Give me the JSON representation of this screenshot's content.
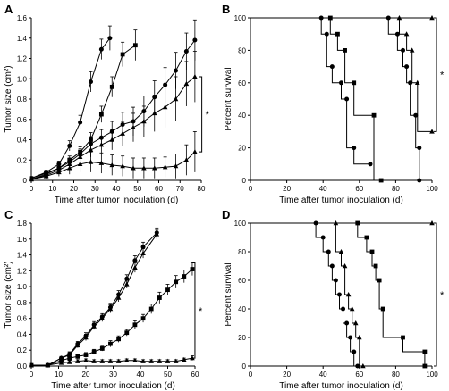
{
  "figure": {
    "star": "*"
  },
  "chart_data": [
    {
      "id": "A",
      "panel": "A",
      "type": "line",
      "xlabel": "Time after tumor inoculation (d)",
      "ylabel": "Tumor size (cm²)",
      "xlim": [
        0,
        80
      ],
      "ylim": [
        0,
        1.6
      ],
      "xticks": [
        0,
        10,
        20,
        30,
        40,
        50,
        60,
        70,
        80
      ],
      "yticks": [
        0,
        0.2,
        0.4,
        0.6,
        0.8,
        1.0,
        1.2,
        1.4,
        1.6
      ],
      "ytick_labels": [
        "0",
        "0.2",
        "0.4",
        "0.6",
        "0.8",
        "1.0",
        "1.2",
        "1.4",
        "1.6"
      ],
      "annotation": "*",
      "bracket": {
        "x": 79,
        "y_top": 1.02,
        "y_bottom": 0.28
      },
      "series": [
        {
          "marker": "circle",
          "x": [
            0,
            7,
            13,
            18,
            23,
            28,
            33,
            37
          ],
          "y": [
            0.02,
            0.08,
            0.16,
            0.34,
            0.57,
            0.97,
            1.29,
            1.4
          ],
          "err": [
            0.01,
            0.02,
            0.03,
            0.05,
            0.07,
            0.1,
            0.1,
            0.12
          ]
        },
        {
          "marker": "square",
          "x": [
            0,
            7,
            13,
            18,
            23,
            28,
            33,
            38,
            43,
            49
          ],
          "y": [
            0.02,
            0.07,
            0.12,
            0.2,
            0.28,
            0.4,
            0.65,
            0.92,
            1.24,
            1.33
          ],
          "err": [
            0.01,
            0.02,
            0.03,
            0.04,
            0.05,
            0.07,
            0.08,
            0.1,
            0.12,
            0.15
          ]
        },
        {
          "marker": "circle",
          "x": [
            0,
            7,
            13,
            18,
            23,
            28,
            33,
            38,
            43,
            48,
            53,
            58,
            63,
            68,
            73,
            77
          ],
          "y": [
            0.01,
            0.06,
            0.12,
            0.18,
            0.26,
            0.36,
            0.42,
            0.48,
            0.55,
            0.58,
            0.68,
            0.82,
            0.94,
            1.08,
            1.27,
            1.38
          ],
          "err": [
            0.01,
            0.02,
            0.03,
            0.04,
            0.05,
            0.07,
            0.08,
            0.1,
            0.12,
            0.14,
            0.15,
            0.16,
            0.17,
            0.18,
            0.18,
            0.2
          ]
        },
        {
          "marker": "triangle",
          "x": [
            0,
            7,
            13,
            18,
            23,
            28,
            33,
            38,
            43,
            48,
            53,
            58,
            63,
            68,
            73,
            77
          ],
          "y": [
            0.01,
            0.05,
            0.1,
            0.16,
            0.23,
            0.3,
            0.35,
            0.4,
            0.46,
            0.52,
            0.58,
            0.66,
            0.72,
            0.8,
            0.95,
            1.02
          ],
          "err": [
            0.01,
            0.02,
            0.03,
            0.04,
            0.05,
            0.07,
            0.08,
            0.1,
            0.12,
            0.14,
            0.15,
            0.18,
            0.2,
            0.22,
            0.22,
            0.25
          ]
        },
        {
          "marker": "triangle",
          "x": [
            0,
            7,
            13,
            18,
            23,
            28,
            33,
            38,
            43,
            48,
            53,
            58,
            63,
            68,
            73,
            77
          ],
          "y": [
            0.01,
            0.04,
            0.08,
            0.12,
            0.16,
            0.18,
            0.17,
            0.15,
            0.14,
            0.12,
            0.12,
            0.12,
            0.13,
            0.14,
            0.2,
            0.28
          ],
          "err": [
            0.01,
            0.02,
            0.04,
            0.06,
            0.08,
            0.1,
            0.1,
            0.1,
            0.1,
            0.1,
            0.1,
            0.1,
            0.1,
            0.12,
            0.15,
            0.2
          ]
        }
      ]
    },
    {
      "id": "B",
      "panel": "B",
      "type": "line",
      "xlabel": "Time after tumor inoculation (d)",
      "ylabel": "Percent survival",
      "xlim": [
        0,
        100
      ],
      "ylim": [
        0,
        100
      ],
      "xticks": [
        0,
        20,
        40,
        60,
        80,
        100
      ],
      "yticks": [
        0,
        20,
        40,
        60,
        80,
        100
      ],
      "annotation": "*",
      "bracket": {
        "x": 101,
        "y_top": 100,
        "y_bottom": 30
      },
      "series": [
        {
          "marker": "circle",
          "x": [
            0,
            39,
            39,
            42,
            42,
            45,
            45,
            50,
            50,
            53,
            53,
            57,
            57,
            66
          ],
          "y": [
            100,
            100,
            90,
            90,
            70,
            70,
            60,
            60,
            50,
            50,
            20,
            20,
            10,
            10
          ]
        },
        {
          "marker": "square",
          "x": [
            0,
            44,
            44,
            48,
            48,
            52,
            52,
            57,
            57,
            68,
            68,
            72
          ],
          "y": [
            100,
            100,
            90,
            90,
            80,
            80,
            60,
            60,
            40,
            40,
            0,
            0
          ]
        },
        {
          "marker": "circle",
          "x": [
            0,
            76,
            76,
            81,
            81,
            84,
            84,
            86,
            86,
            88,
            88,
            91,
            91,
            93,
            93
          ],
          "y": [
            100,
            100,
            90,
            90,
            80,
            80,
            70,
            70,
            60,
            60,
            40,
            40,
            20,
            20,
            0
          ]
        },
        {
          "marker": "triangle",
          "x": [
            0,
            82,
            82,
            86,
            86,
            89,
            89,
            92,
            92,
            96,
            96,
            100
          ],
          "y": [
            100,
            100,
            90,
            90,
            80,
            80,
            60,
            60,
            30,
            30,
            30,
            30
          ]
        },
        {
          "marker": "triangle",
          "x": [
            0,
            100
          ],
          "y": [
            100,
            100
          ]
        }
      ]
    },
    {
      "id": "C",
      "panel": "C",
      "type": "line",
      "xlabel": "Time after tumor inoculation (d)",
      "ylabel": "Tumor size (cm²)",
      "xlim": [
        0,
        60
      ],
      "ylim": [
        0,
        1.8
      ],
      "xticks": [
        0,
        10,
        20,
        30,
        40,
        50,
        60
      ],
      "yticks": [
        0,
        0.2,
        0.4,
        0.6,
        0.8,
        1.0,
        1.2,
        1.4,
        1.6,
        1.8
      ],
      "ytick_labels": [
        "0.0",
        "0.2",
        "0.4",
        "0.6",
        "0.8",
        "1.0",
        "1.2",
        "1.4",
        "1.6",
        "1.8"
      ],
      "annotation": "*",
      "bracket": {
        "x": 59,
        "y_top": 1.3,
        "y_bottom": 0.1
      },
      "series": [
        {
          "marker": "circle",
          "x": [
            0,
            6,
            11,
            14,
            17,
            20,
            23,
            26,
            29,
            32,
            35,
            38,
            41,
            46
          ],
          "y": [
            0.01,
            0.01,
            0.1,
            0.15,
            0.28,
            0.38,
            0.52,
            0.62,
            0.74,
            0.9,
            1.1,
            1.33,
            1.5,
            1.68
          ],
          "err": [
            0.01,
            0.01,
            0.02,
            0.03,
            0.03,
            0.04,
            0.04,
            0.04,
            0.05,
            0.05,
            0.05,
            0.06,
            0.06,
            0.06
          ]
        },
        {
          "marker": "triangle",
          "x": [
            0,
            6,
            11,
            14,
            17,
            20,
            23,
            26,
            29,
            32,
            35,
            38,
            41,
            46
          ],
          "y": [
            0.01,
            0.01,
            0.1,
            0.14,
            0.26,
            0.36,
            0.5,
            0.6,
            0.72,
            0.86,
            1.03,
            1.24,
            1.42,
            1.66
          ],
          "err": [
            0.01,
            0.01,
            0.02,
            0.03,
            0.03,
            0.04,
            0.04,
            0.04,
            0.05,
            0.05,
            0.05,
            0.06,
            0.06,
            0.06
          ]
        },
        {
          "marker": "square",
          "x": [
            0,
            6,
            11,
            14,
            17,
            20,
            23,
            26,
            29,
            32,
            35,
            38,
            41,
            44,
            47,
            50,
            53,
            56,
            59
          ],
          "y": [
            0.01,
            0.01,
            0.07,
            0.1,
            0.12,
            0.14,
            0.18,
            0.22,
            0.28,
            0.34,
            0.42,
            0.52,
            0.6,
            0.72,
            0.86,
            0.96,
            1.06,
            1.13,
            1.22
          ],
          "err": [
            0.01,
            0.01,
            0.02,
            0.02,
            0.03,
            0.03,
            0.03,
            0.03,
            0.04,
            0.04,
            0.04,
            0.05,
            0.05,
            0.06,
            0.07,
            0.07,
            0.08,
            0.08,
            0.08
          ]
        },
        {
          "marker": "triangle",
          "x": [
            0,
            6,
            11,
            14,
            17,
            20,
            23,
            26,
            29,
            32,
            35,
            38,
            41,
            44,
            47,
            50,
            53,
            56,
            59
          ],
          "y": [
            0.01,
            0.01,
            0.04,
            0.05,
            0.06,
            0.07,
            0.06,
            0.06,
            0.06,
            0.06,
            0.07,
            0.07,
            0.06,
            0.06,
            0.06,
            0.06,
            0.06,
            0.08,
            0.1
          ],
          "err": [
            0.01,
            0.01,
            0.01,
            0.02,
            0.02,
            0.02,
            0.02,
            0.02,
            0.02,
            0.02,
            0.02,
            0.02,
            0.02,
            0.02,
            0.02,
            0.02,
            0.02,
            0.02,
            0.03
          ]
        }
      ]
    },
    {
      "id": "D",
      "panel": "D",
      "type": "line",
      "xlabel": "Time after tumor inoculation (d)",
      "ylabel": "Percent survival",
      "xlim": [
        0,
        100
      ],
      "ylim": [
        0,
        100
      ],
      "xticks": [
        0,
        20,
        40,
        60,
        80,
        100
      ],
      "yticks": [
        0,
        20,
        40,
        60,
        80,
        100
      ],
      "annotation": "*",
      "bracket": {
        "x": 101,
        "y_top": 100,
        "y_bottom": 0
      },
      "series": [
        {
          "marker": "circle",
          "x": [
            0,
            36,
            36,
            40,
            40,
            43,
            43,
            45,
            45,
            47,
            47,
            49,
            49,
            51,
            51,
            53,
            53,
            55,
            55,
            57,
            57,
            59
          ],
          "y": [
            100,
            100,
            90,
            90,
            80,
            80,
            70,
            70,
            60,
            60,
            50,
            50,
            40,
            40,
            30,
            30,
            20,
            20,
            10,
            10,
            0,
            0
          ]
        },
        {
          "marker": "triangle",
          "x": [
            0,
            47,
            47,
            50,
            50,
            52,
            52,
            54,
            54,
            56,
            56,
            58,
            58,
            60,
            60,
            62
          ],
          "y": [
            100,
            100,
            80,
            80,
            70,
            70,
            50,
            50,
            40,
            40,
            30,
            30,
            20,
            20,
            0,
            0
          ]
        },
        {
          "marker": "square",
          "x": [
            0,
            59,
            59,
            64,
            64,
            67,
            67,
            69,
            69,
            71,
            71,
            73,
            73,
            84,
            84,
            96,
            96
          ],
          "y": [
            100,
            100,
            90,
            90,
            80,
            80,
            70,
            70,
            60,
            60,
            40,
            40,
            20,
            20,
            10,
            10,
            0
          ]
        },
        {
          "marker": "triangle",
          "x": [
            0,
            100
          ],
          "y": [
            100,
            100
          ]
        }
      ]
    }
  ]
}
